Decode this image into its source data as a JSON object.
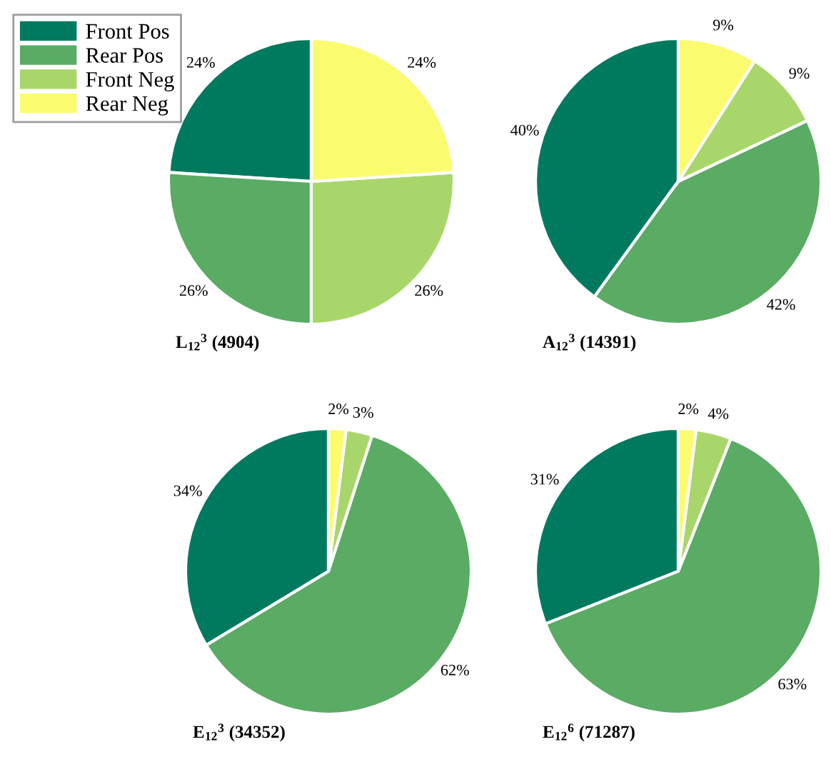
{
  "chart_data": [
    {
      "type": "pie",
      "title": "L$_{12}$$^{3}$ (4904)",
      "categories": [
        "Front Pos",
        "Rear Pos",
        "Front Neg",
        "Rear Neg"
      ],
      "values": [
        24,
        26,
        26,
        24
      ],
      "value_labels": [
        "24%",
        "26%",
        "26%",
        "24%"
      ],
      "colors": [
        "#007a5e",
        "#5aab64",
        "#a9d66b",
        "#fbfb70"
      ],
      "legend": "top left"
    },
    {
      "type": "pie",
      "title": "A$_{12}$$^{3}$ (14391)",
      "categories": [
        null,
        null,
        null,
        null
      ],
      "values": [
        40,
        42,
        9,
        9
      ],
      "value_labels": [
        "40%",
        "42%",
        "9%",
        "9%"
      ],
      "colors": [
        "#007a5e",
        "#5aab64",
        "#a9d66b",
        "#fbfb70"
      ]
    },
    {
      "type": "pie",
      "title": "E$_{12}$$^{3}$ (34352)",
      "categories": [
        null,
        null,
        null,
        null
      ],
      "values": [
        34,
        62,
        3,
        2
      ],
      "value_labels": [
        "34%",
        "62%",
        "3%",
        "2%"
      ],
      "colors": [
        "#007a5e",
        "#5aab64",
        "#a9d66b",
        "#fbfb70"
      ]
    },
    {
      "type": "pie",
      "title": "E$_{12}$$^{6}$ (71287)",
      "categories": [
        null,
        null,
        null,
        null
      ],
      "values": [
        31,
        63,
        4,
        2
      ],
      "value_labels": [
        "31%",
        "63%",
        "4%",
        "2%"
      ],
      "colors": [
        "#007a5e",
        "#5aab64",
        "#a9d66b",
        "#fbfb70"
      ]
    }
  ]
}
